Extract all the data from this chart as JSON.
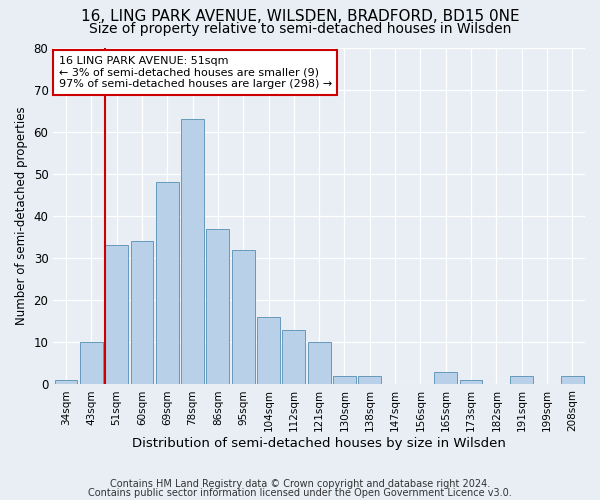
{
  "title": "16, LING PARK AVENUE, WILSDEN, BRADFORD, BD15 0NE",
  "subtitle": "Size of property relative to semi-detached houses in Wilsden",
  "xlabel": "Distribution of semi-detached houses by size in Wilsden",
  "ylabel": "Number of semi-detached properties",
  "categories": [
    "34sqm",
    "43sqm",
    "51sqm",
    "60sqm",
    "69sqm",
    "78sqm",
    "86sqm",
    "95sqm",
    "104sqm",
    "112sqm",
    "121sqm",
    "130sqm",
    "138sqm",
    "147sqm",
    "156sqm",
    "165sqm",
    "173sqm",
    "182sqm",
    "191sqm",
    "199sqm",
    "208sqm"
  ],
  "values": [
    1,
    10,
    33,
    34,
    48,
    63,
    37,
    32,
    16,
    13,
    10,
    2,
    2,
    0,
    0,
    3,
    1,
    0,
    2,
    0,
    2
  ],
  "highlight_index": 2,
  "bar_color": "#b8d0e8",
  "highlight_line_color": "#cc0000",
  "ylim": [
    0,
    80
  ],
  "annotation_line1": "16 LING PARK AVENUE: 51sqm",
  "annotation_line2": "← 3% of semi-detached houses are smaller (9)",
  "annotation_line3": "97% of semi-detached houses are larger (298) →",
  "annotation_box_color": "#ffffff",
  "annotation_box_edge": "#cc0000",
  "footer1": "Contains HM Land Registry data © Crown copyright and database right 2024.",
  "footer2": "Contains public sector information licensed under the Open Government Licence v3.0.",
  "title_fontsize": 11,
  "subtitle_fontsize": 10,
  "background_color": "#e8eef4"
}
